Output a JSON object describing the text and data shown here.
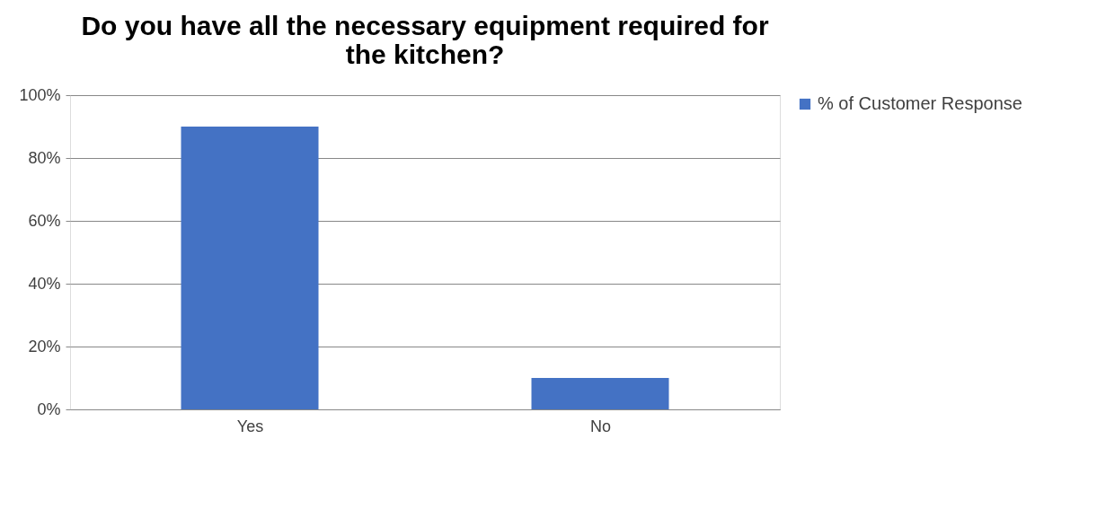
{
  "chart_data": {
    "type": "bar",
    "title": "Do you have all the necessary equipment required for the kitchen?",
    "categories": [
      "Yes",
      "No"
    ],
    "series": [
      {
        "name": "% of Customer Response",
        "color": "#4472c4",
        "values": [
          90,
          10
        ]
      }
    ],
    "ylim": [
      0,
      100
    ],
    "yticks": [
      {
        "value": 0,
        "label": "0%"
      },
      {
        "value": 20,
        "label": "20%"
      },
      {
        "value": 40,
        "label": "40%"
      },
      {
        "value": 60,
        "label": "60%"
      },
      {
        "value": 80,
        "label": "80%"
      },
      {
        "value": 100,
        "label": "100%"
      }
    ],
    "grid": "y",
    "legend": "right"
  }
}
